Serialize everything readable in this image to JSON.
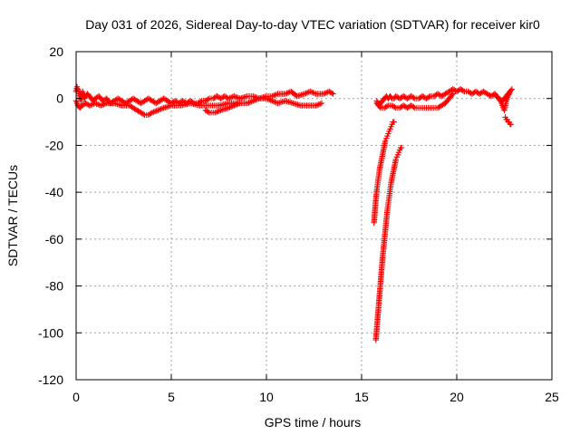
{
  "chart_data": {
    "type": "scatter",
    "title": "Day 031 of 2026, Sidereal Day-to-day VTEC variation (SDTVAR) for receiver kir0",
    "xlabel": "GPS time / hours",
    "ylabel": "SDTVAR / TECUs",
    "xlim": [
      0,
      25
    ],
    "ylim": [
      -120,
      20
    ],
    "xticks": [
      0,
      5,
      10,
      15,
      20,
      25
    ],
    "yticks": [
      20,
      0,
      -20,
      -40,
      -60,
      -80,
      -100,
      -120
    ],
    "grid": true,
    "marker": "plus",
    "series": [
      {
        "name": "SDTVAR",
        "color": "#ff0000",
        "segments": [
          {
            "x": [
              0.0,
              0.05,
              0.1,
              0.15,
              0.2,
              0.25,
              0.3,
              0.35,
              0.4,
              0.45,
              0.5,
              0.6,
              0.7,
              0.8,
              0.9,
              1.0,
              1.2,
              1.4,
              1.6,
              1.8,
              2.0,
              2.2,
              2.4,
              2.6,
              2.8,
              3.0,
              3.2,
              3.4,
              3.6,
              3.8,
              4.0,
              4.2,
              4.4,
              4.6,
              4.8,
              5.0,
              5.2,
              5.4,
              5.6,
              5.8,
              6.0,
              6.2,
              6.4,
              6.6,
              6.8
            ],
            "y": [
              3,
              5,
              4,
              2,
              0,
              -1,
              1,
              3,
              2,
              0,
              1,
              2,
              1,
              0,
              -1,
              0,
              1,
              -1,
              0,
              -2,
              -1,
              0,
              -1,
              -2,
              -1,
              0,
              -1,
              -2,
              -1,
              0,
              -1,
              -2,
              -1,
              0,
              -1,
              -2,
              -1,
              -2,
              -1,
              -2,
              -1,
              -2,
              -2,
              -1,
              -1
            ]
          },
          {
            "x": [
              0.0,
              0.1,
              0.2,
              0.3,
              0.5,
              0.7,
              1.0,
              1.3,
              1.6,
              2.0,
              2.4,
              2.8,
              3.0,
              3.2,
              3.4,
              3.6,
              3.8,
              4.0,
              4.3,
              4.6,
              5.0,
              5.5,
              6.0,
              6.5,
              7.0,
              7.5,
              8.0,
              8.5
            ],
            "y": [
              -1,
              -3,
              -4,
              -3,
              -2,
              -3,
              -2,
              -3,
              -2,
              -2,
              -3,
              -3,
              -4,
              -5,
              -6,
              -7,
              -7,
              -6,
              -5,
              -4,
              -3,
              -3,
              -2,
              -3,
              -3,
              -3,
              -2,
              -2
            ]
          },
          {
            "x": [
              6.8,
              7.0,
              7.2,
              7.4,
              7.6,
              7.8,
              8.0,
              8.3,
              8.6,
              9.0,
              9.3,
              9.6,
              10.0,
              10.3,
              10.6,
              11.0,
              11.3,
              11.6,
              12.0,
              12.3,
              12.6,
              13.0,
              13.3,
              13.5
            ],
            "y": [
              -1,
              0,
              0,
              1,
              0,
              1,
              0,
              1,
              0,
              1,
              1,
              0,
              1,
              1,
              2,
              2,
              3,
              1,
              2,
              3,
              2,
              2,
              3,
              2
            ]
          },
          {
            "x": [
              6.8,
              7.0,
              7.3,
              7.6,
              8.0,
              8.3,
              8.6,
              9.0,
              9.3,
              9.6,
              10.0,
              10.3,
              10.6,
              11.0,
              11.4,
              11.8,
              12.2,
              12.6,
              12.9
            ],
            "y": [
              -5,
              -6,
              -6,
              -5,
              -4,
              -3,
              -2,
              -2,
              -1,
              0,
              0,
              -1,
              -2,
              -1,
              -2,
              -3,
              -3,
              -3,
              -2
            ]
          },
          {
            "x": [
              15.8,
              15.9,
              16.0,
              16.1,
              16.2,
              16.3,
              16.4,
              16.5,
              16.6,
              16.7,
              16.8,
              17.0,
              17.2,
              17.4,
              17.6,
              17.8,
              18.0,
              18.2,
              18.4,
              18.6,
              18.8,
              19.0,
              19.2,
              19.4,
              19.6,
              19.8,
              20.0,
              20.2,
              20.4,
              20.6,
              20.8,
              21.0,
              21.2,
              21.4,
              21.6,
              21.8,
              22.0,
              22.2,
              22.4,
              22.6,
              22.8
            ],
            "y": [
              -1,
              -3,
              -2,
              -1,
              0,
              1,
              0,
              1,
              0,
              0,
              1,
              0,
              1,
              0,
              1,
              0,
              0,
              1,
              0,
              1,
              1,
              2,
              1,
              2,
              3,
              4,
              3,
              4,
              3,
              3,
              2,
              3,
              2,
              3,
              2,
              1,
              2,
              0,
              -1,
              1,
              3
            ]
          },
          {
            "x": [
              15.8,
              16.0,
              16.2,
              16.4,
              16.6,
              16.8,
              17.0,
              17.2,
              17.4,
              17.6,
              17.8,
              18.0,
              18.2,
              18.4,
              18.6,
              18.8,
              19.0,
              19.2,
              19.4,
              19.6,
              19.8
            ],
            "y": [
              -2,
              -4,
              -4,
              -3,
              -3,
              -4,
              -4,
              -3,
              -4,
              -3,
              -4,
              -4,
              -4,
              -4,
              -4,
              -4,
              -4,
              -3,
              -2,
              0,
              2
            ]
          },
          {
            "x": [
              15.65,
              15.7,
              15.75,
              15.8,
              15.85,
              15.9,
              15.95,
              16.0,
              16.05,
              16.1,
              16.15,
              16.2,
              16.25,
              16.3,
              16.35,
              16.4,
              16.45,
              16.5,
              16.55,
              16.6,
              16.65,
              16.7
            ],
            "y": [
              -53,
              -48,
              -43,
              -39,
              -36,
              -33,
              -30,
              -28,
              -26,
              -24,
              -22,
              -20,
              -18,
              -17,
              -16,
              -15,
              -14,
              -13,
              -12,
              -11,
              -10,
              -10
            ]
          },
          {
            "x": [
              15.75,
              15.8,
              15.85,
              15.9,
              15.95,
              16.0,
              16.05,
              16.1,
              16.15,
              16.2,
              16.25,
              16.3,
              16.35,
              16.4,
              16.45,
              16.5,
              16.55,
              16.6,
              16.65,
              16.7,
              16.75,
              16.8,
              16.85,
              16.9,
              16.95,
              17.0,
              17.05,
              17.1
            ],
            "y": [
              -103,
              -98,
              -93,
              -88,
              -83,
              -78,
              -73,
              -68,
              -64,
              -60,
              -56,
              -52,
              -48,
              -45,
              -42,
              -39,
              -36,
              -34,
              -32,
              -30,
              -28,
              -26,
              -25,
              -24,
              -23,
              -22,
              -21,
              -21
            ]
          },
          {
            "x": [
              22.0,
              22.1,
              22.2,
              22.3,
              22.4,
              22.5,
              22.6,
              22.7,
              22.8,
              22.9
            ],
            "y": [
              2,
              1,
              0,
              -1,
              -3,
              -5,
              -1,
              1,
              3,
              4
            ]
          },
          {
            "x": [
              22.55,
              22.6,
              22.65,
              22.7,
              22.75,
              22.8,
              22.85
            ],
            "y": [
              -8,
              -9,
              -9,
              -10,
              -10,
              -11,
              -11
            ]
          }
        ]
      }
    ]
  }
}
